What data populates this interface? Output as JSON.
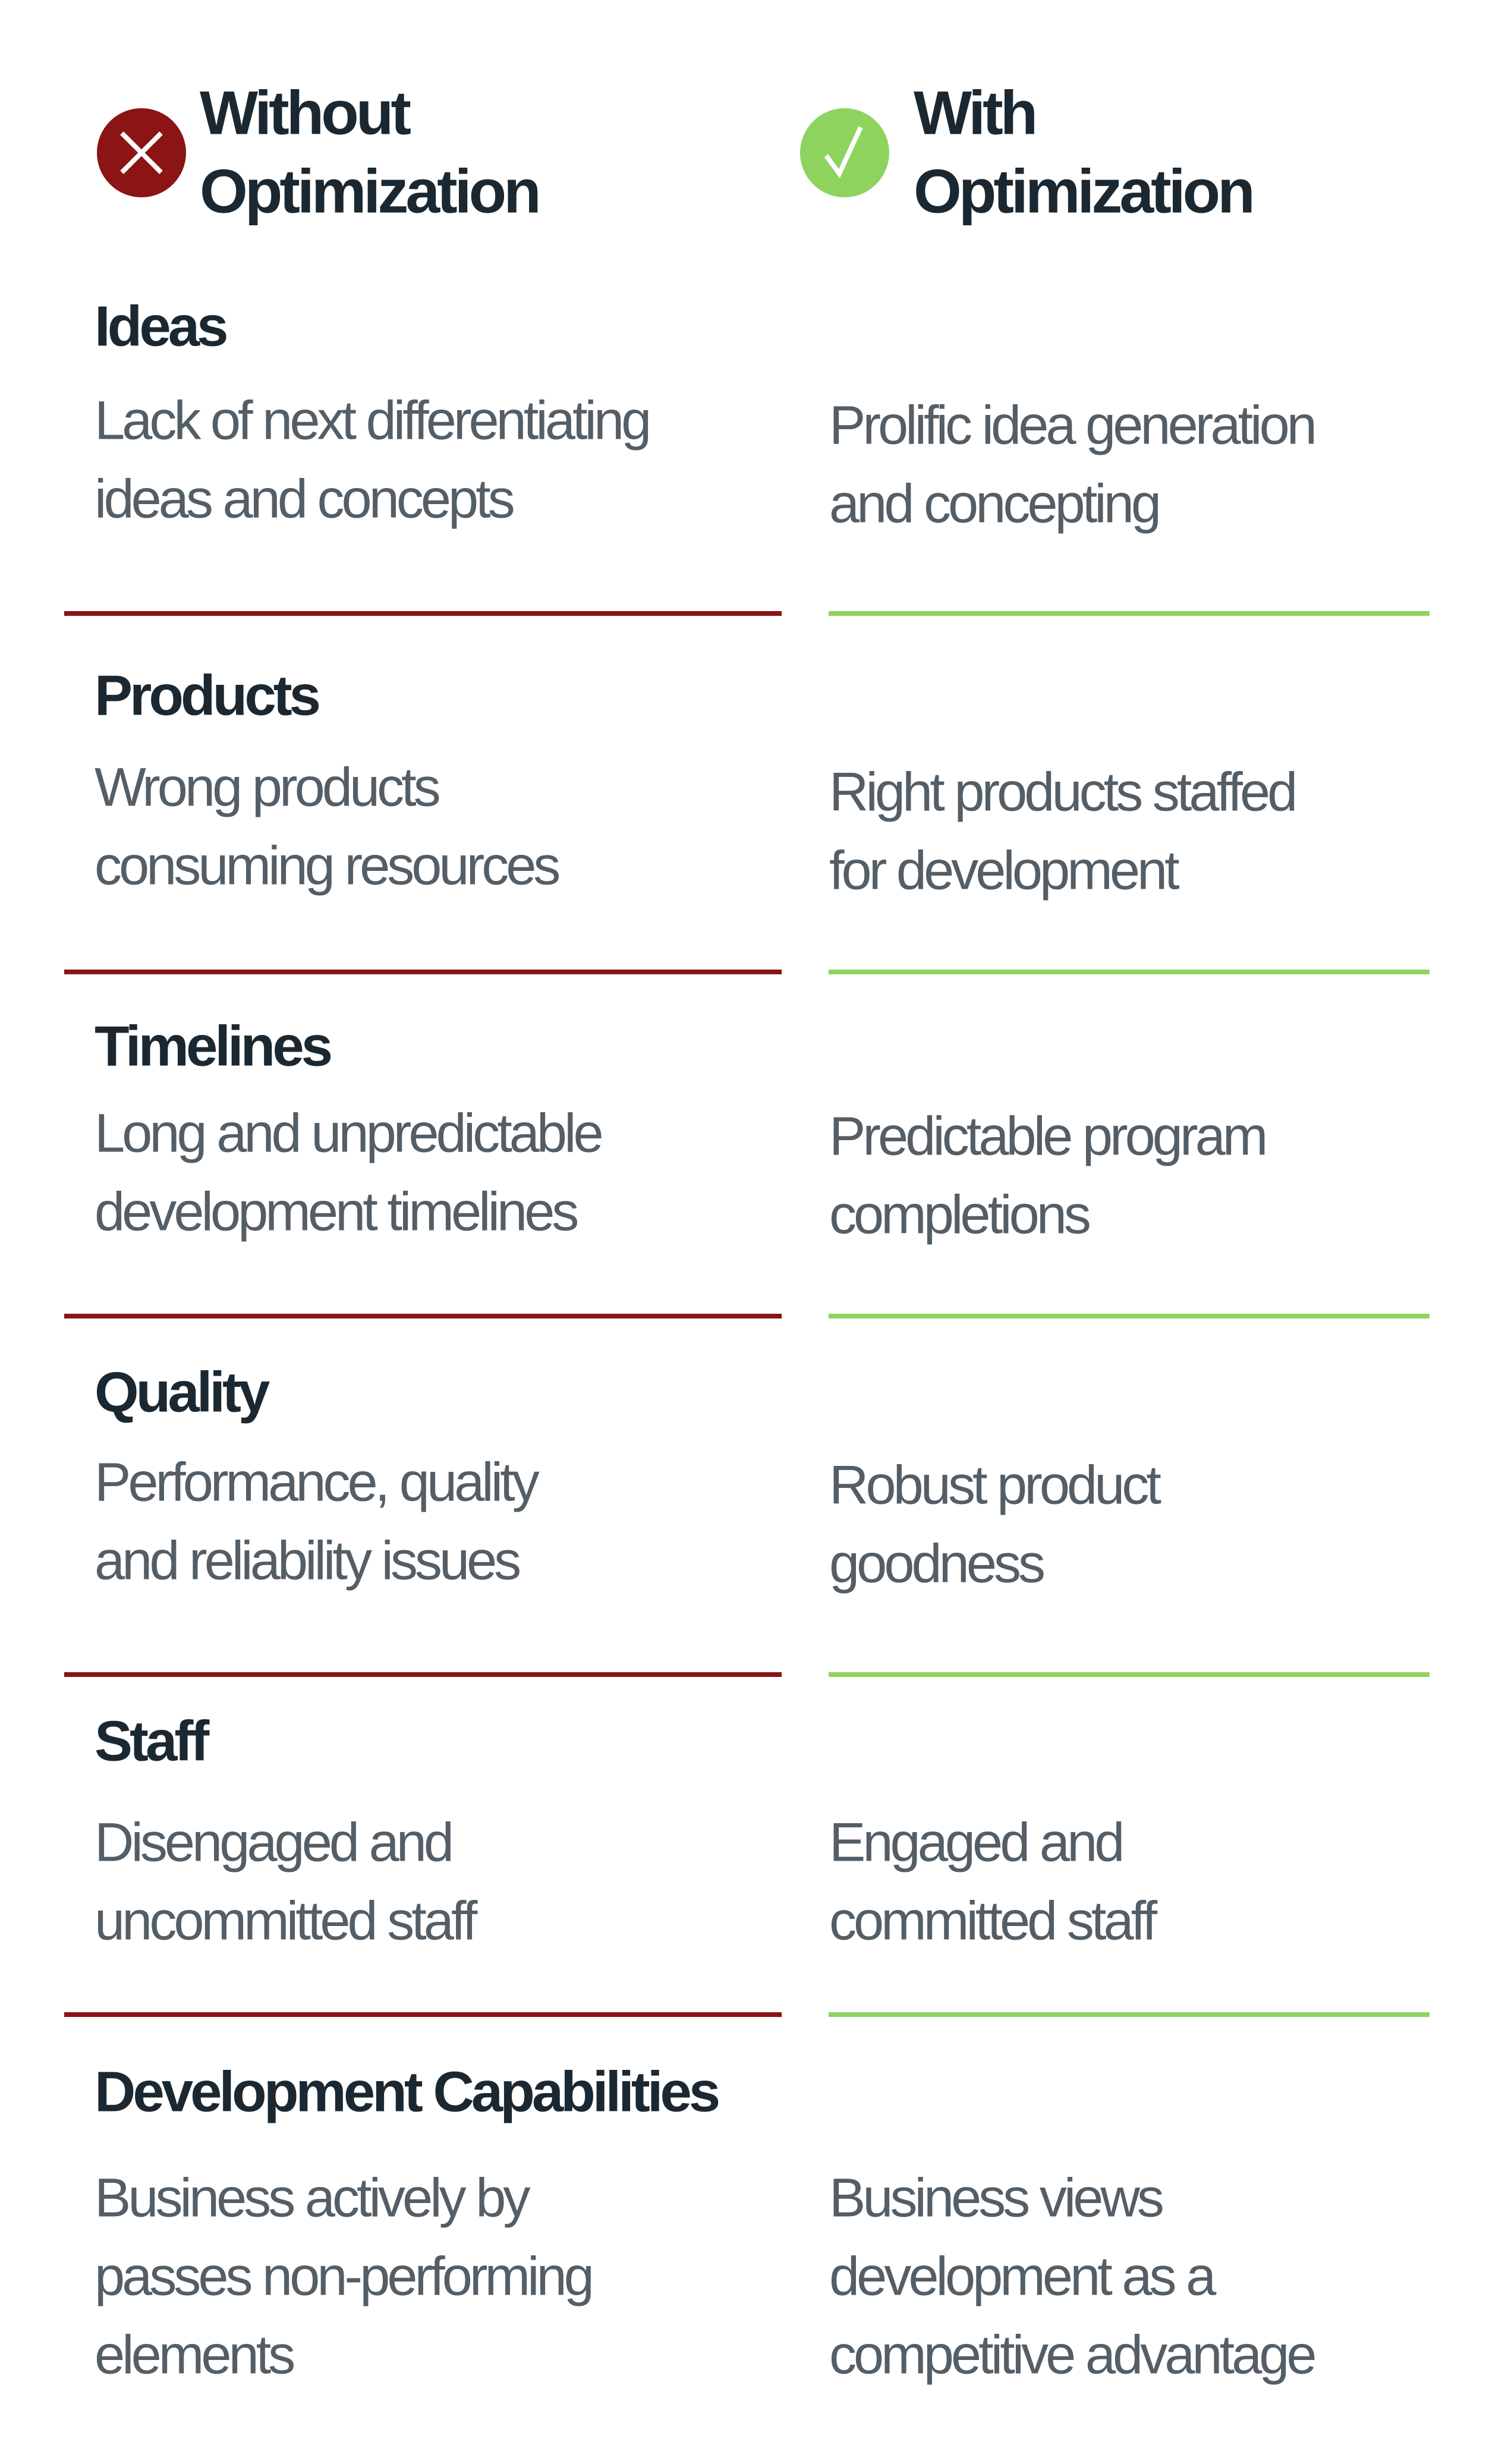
{
  "header": {
    "without": [
      "Without",
      "Optimization"
    ],
    "with": [
      "With",
      "Optimization"
    ]
  },
  "rows": [
    {
      "title": "Ideas",
      "without": [
        "Lack of next differentiating",
        "ideas and concepts"
      ],
      "with": [
        "Prolific idea generation",
        "and concepting"
      ]
    },
    {
      "title": "Products",
      "without": [
        "Wrong products",
        "consuming resources"
      ],
      "with": [
        "Right products staffed",
        "for development"
      ]
    },
    {
      "title": "Timelines",
      "without": [
        "Long and unpredictable",
        "development timelines"
      ],
      "with": [
        "Predictable program",
        "completions"
      ]
    },
    {
      "title": "Quality",
      "without": [
        "Performance, quality",
        "and reliability issues"
      ],
      "with": [
        "Robust product",
        "goodness"
      ]
    },
    {
      "title": "Staff",
      "without": [
        "Disengaged and",
        "uncommitted staff"
      ],
      "with": [
        "Engaged and",
        "committed staff"
      ]
    },
    {
      "title": "Development Capabilities",
      "without": [
        "Business actively by",
        "passes non-performing",
        "elements"
      ],
      "with": [
        "Business views",
        "development as a",
        "competitive advantage"
      ]
    }
  ]
}
